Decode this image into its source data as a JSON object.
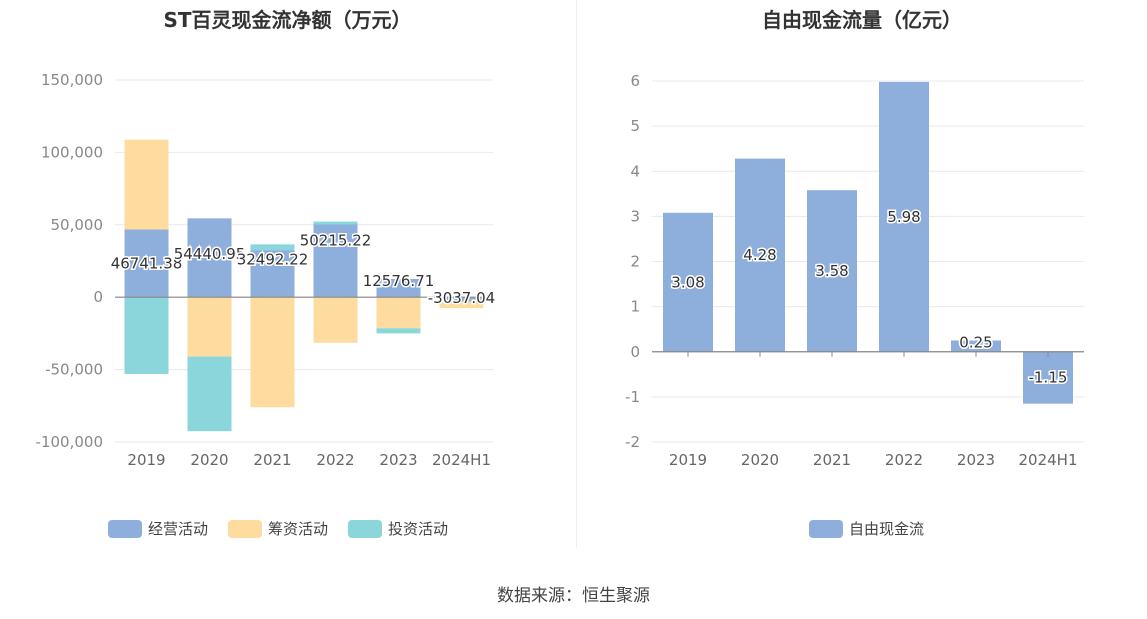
{
  "footer": {
    "source_label": "数据来源：恒生聚源"
  },
  "chart_data": [
    {
      "type": "bar",
      "stacked": true,
      "title": "ST百灵现金流净额（万元）",
      "categories": [
        "2019",
        "2020",
        "2021",
        "2022",
        "2023",
        "2024H1"
      ],
      "ylim": [
        -100000,
        150000
      ],
      "yticks": [
        "150,000",
        "100,000",
        "50,000",
        "0",
        "-50,000",
        "-100,000"
      ],
      "ytick_values": [
        150000,
        100000,
        50000,
        0,
        -50000,
        -100000
      ],
      "grid": true,
      "legend_position": "bottom",
      "series": [
        {
          "name": "经营活动",
          "color": "#8eaedb",
          "values": [
            46741.38,
            54440.95,
            32492.22,
            50215.22,
            12576.71,
            -3037.04
          ],
          "labels": [
            "46741.38",
            "54440.95",
            "32492.22",
            "50215.22",
            "12576.71",
            "-3037.04"
          ]
        },
        {
          "name": "筹资活动",
          "color": "#fedb9f",
          "values": [
            62000,
            -41000,
            -76000,
            -31500,
            -21500,
            -4500
          ]
        },
        {
          "name": "投资活动",
          "color": "#8ad6da",
          "values": [
            -53000,
            -51500,
            4000,
            2000,
            -3500,
            0
          ]
        }
      ]
    },
    {
      "type": "bar",
      "title": "自由现金流量（亿元）",
      "categories": [
        "2019",
        "2020",
        "2021",
        "2022",
        "2023",
        "2024H1"
      ],
      "ylim": [
        -2,
        6
      ],
      "yticks": [
        "6",
        "5",
        "4",
        "3",
        "2",
        "1",
        "0",
        "-1",
        "-2"
      ],
      "ytick_values": [
        6,
        5,
        4,
        3,
        2,
        1,
        0,
        -1,
        -2
      ],
      "grid": true,
      "legend_position": "bottom",
      "series": [
        {
          "name": "自由现金流",
          "color": "#8eaedb",
          "values": [
            3.08,
            4.28,
            3.58,
            5.98,
            0.25,
            -1.15
          ],
          "labels": [
            "3.08",
            "4.28",
            "3.58",
            "5.98",
            "0.25",
            "-1.15"
          ]
        }
      ]
    }
  ]
}
